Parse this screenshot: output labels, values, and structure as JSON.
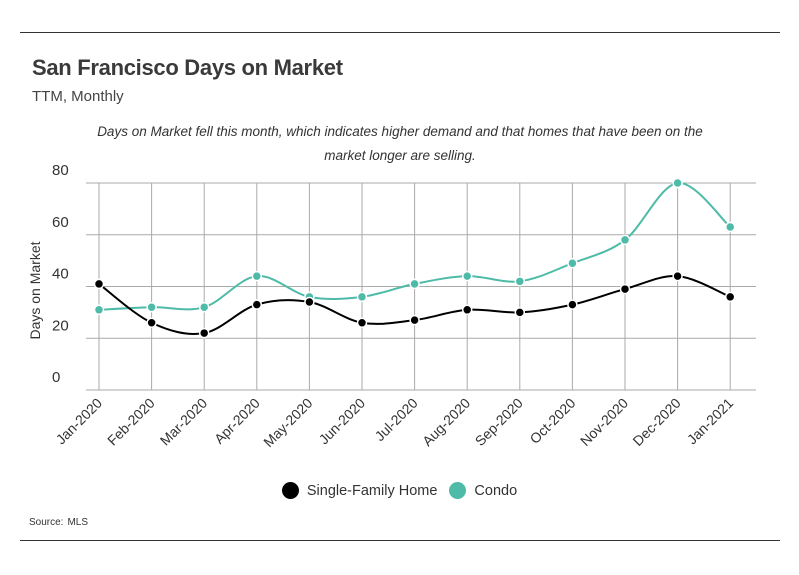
{
  "header": {
    "title": "San Francisco Days on Market",
    "subtitle": "TTM, Monthly",
    "annotation": "Days on Market fell this month, which indicates higher demand and that homes that have been on the market longer are selling."
  },
  "footer": {
    "source_label": "Source:",
    "source_value": "MLS"
  },
  "colors": {
    "single_family": "#000000",
    "condo": "#4dbba8",
    "grid": "#aaaaaa"
  },
  "chart_data": {
    "type": "line",
    "title": "San Francisco Days on Market",
    "subtitle": "TTM, Monthly",
    "xlabel": "",
    "ylabel": "Days on Market",
    "ylim": [
      0,
      80
    ],
    "yticks": [
      0,
      20,
      40,
      60,
      80
    ],
    "grid": true,
    "legend_position": "bottom",
    "categories": [
      "Jan-2020",
      "Feb-2020",
      "Mar-2020",
      "Apr-2020",
      "May-2020",
      "Jun-2020",
      "Jul-2020",
      "Aug-2020",
      "Sep-2020",
      "Oct-2020",
      "Nov-2020",
      "Dec-2020",
      "Jan-2021"
    ],
    "series": [
      {
        "name": "Single-Family Home",
        "color": "#000000",
        "values": [
          41,
          26,
          22,
          33,
          34,
          26,
          27,
          31,
          30,
          33,
          39,
          44,
          36
        ]
      },
      {
        "name": "Condo",
        "color": "#4dbba8",
        "values": [
          31,
          32,
          32,
          44,
          36,
          36,
          41,
          44,
          42,
          49,
          58,
          80,
          63
        ]
      }
    ]
  }
}
